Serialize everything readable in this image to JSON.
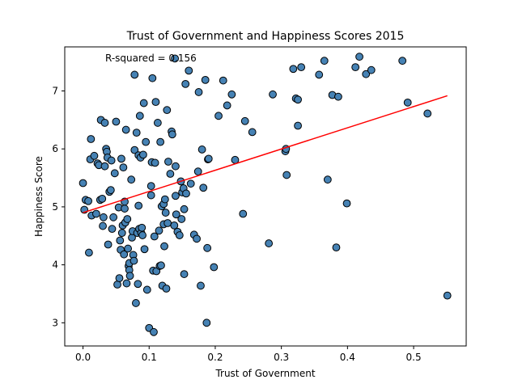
{
  "chart_data": {
    "type": "scatter",
    "title": "Trust of Government and Happiness Scores 2015",
    "xlabel": "Trust of Government",
    "ylabel": "Happiness Score",
    "annotation": "R-squared = 0.156",
    "xlim": [
      -0.0276,
      0.5795
    ],
    "ylim": [
      2.6,
      7.76
    ],
    "xticks": [
      0.0,
      0.1,
      0.2,
      0.3,
      0.4,
      0.5
    ],
    "xtick_labels": [
      "0.0",
      "0.1",
      "0.2",
      "0.3",
      "0.4",
      "0.5"
    ],
    "yticks": [
      3,
      4,
      5,
      6,
      7
    ],
    "ytick_labels": [
      "3",
      "4",
      "5",
      "6",
      "7"
    ],
    "grid": false,
    "point_color": "#4682b4",
    "point_edge_color": "#000000",
    "fit_color": "#ff0000",
    "fit_line": {
      "slope": 3.66,
      "intercept": 4.9,
      "x_range": [
        0.0,
        0.551
      ]
    },
    "points": [
      [
        0.0,
        5.41
      ],
      [
        0.002,
        4.95
      ],
      [
        0.004,
        5.12
      ],
      [
        0.009,
        4.21
      ],
      [
        0.008,
        5.1
      ],
      [
        0.012,
        6.17
      ],
      [
        0.013,
        4.85
      ],
      [
        0.011,
        5.82
      ],
      [
        0.017,
        5.88
      ],
      [
        0.02,
        4.88
      ],
      [
        0.022,
        5.75
      ],
      [
        0.024,
        5.72
      ],
      [
        0.026,
        5.12
      ],
      [
        0.027,
        6.5
      ],
      [
        0.029,
        5.14
      ],
      [
        0.03,
        4.67
      ],
      [
        0.031,
        4.82
      ],
      [
        0.033,
        6.45
      ],
      [
        0.033,
        5.7
      ],
      [
        0.035,
        6.0
      ],
      [
        0.036,
        5.95
      ],
      [
        0.037,
        5.85
      ],
      [
        0.038,
        4.35
      ],
      [
        0.04,
        5.26
      ],
      [
        0.042,
        5.29
      ],
      [
        0.043,
        5.8
      ],
      [
        0.044,
        4.62
      ],
      [
        0.046,
        4.82
      ],
      [
        0.048,
        5.58
      ],
      [
        0.05,
        6.47
      ],
      [
        0.052,
        3.66
      ],
      [
        0.054,
        4.99
      ],
      [
        0.056,
        4.42
      ],
      [
        0.055,
        3.77
      ],
      [
        0.057,
        4.26
      ],
      [
        0.058,
        5.83
      ],
      [
        0.059,
        4.55
      ],
      [
        0.06,
        4.68
      ],
      [
        0.061,
        5.68
      ],
      [
        0.062,
        4.18
      ],
      [
        0.063,
        4.97
      ],
      [
        0.063,
        5.09
      ],
      [
        0.064,
        4.73
      ],
      [
        0.065,
        6.33
      ],
      [
        0.066,
        3.68
      ],
      [
        0.067,
        4.79
      ],
      [
        0.068,
        4.28
      ],
      [
        0.069,
        3.98
      ],
      [
        0.07,
        4.03
      ],
      [
        0.07,
        3.91
      ],
      [
        0.071,
        3.81
      ],
      [
        0.073,
        5.47
      ],
      [
        0.074,
        4.47
      ],
      [
        0.075,
        4.58
      ],
      [
        0.076,
        4.17
      ],
      [
        0.077,
        4.07
      ],
      [
        0.078,
        5.98
      ],
      [
        0.078,
        7.28
      ],
      [
        0.08,
        3.34
      ],
      [
        0.081,
        6.28
      ],
      [
        0.082,
        4.55
      ],
      [
        0.083,
        3.67
      ],
      [
        0.084,
        5.89
      ],
      [
        0.084,
        5.02
      ],
      [
        0.085,
        4.62
      ],
      [
        0.086,
        6.57
      ],
      [
        0.087,
        5.85
      ],
      [
        0.088,
        4.55
      ],
      [
        0.089,
        4.64
      ],
      [
        0.09,
        4.51
      ],
      [
        0.091,
        5.9
      ],
      [
        0.092,
        6.79
      ],
      [
        0.093,
        4.27
      ],
      [
        0.095,
        6.12
      ],
      [
        0.097,
        3.57
      ],
      [
        0.1,
        2.91
      ],
      [
        0.103,
        5.2
      ],
      [
        0.103,
        5.36
      ],
      [
        0.104,
        5.77
      ],
      [
        0.105,
        7.22
      ],
      [
        0.106,
        3.9
      ],
      [
        0.107,
        2.84
      ],
      [
        0.108,
        4.49
      ],
      [
        0.109,
        5.76
      ],
      [
        0.11,
        6.81
      ],
      [
        0.111,
        3.89
      ],
      [
        0.113,
        6.45
      ],
      [
        0.115,
        4.59
      ],
      [
        0.116,
        3.98
      ],
      [
        0.117,
        6.12
      ],
      [
        0.118,
        3.99
      ],
      [
        0.119,
        5.01
      ],
      [
        0.12,
        3.64
      ],
      [
        0.122,
        4.7
      ],
      [
        0.122,
        5.05
      ],
      [
        0.123,
        4.32
      ],
      [
        0.124,
        5.13
      ],
      [
        0.125,
        4.9
      ],
      [
        0.126,
        3.59
      ],
      [
        0.127,
        6.67
      ],
      [
        0.128,
        4.72
      ],
      [
        0.129,
        5.78
      ],
      [
        0.132,
        5.57
      ],
      [
        0.134,
        6.3
      ],
      [
        0.135,
        6.25
      ],
      [
        0.138,
        4.68
      ],
      [
        0.139,
        7.56
      ],
      [
        0.14,
        5.7
      ],
      [
        0.14,
        5.19
      ],
      [
        0.141,
        4.87
      ],
      [
        0.143,
        4.57
      ],
      [
        0.146,
        4.51
      ],
      [
        0.148,
        5.44
      ],
      [
        0.149,
        4.79
      ],
      [
        0.15,
        5.25
      ],
      [
        0.152,
        5.32
      ],
      [
        0.153,
        3.84
      ],
      [
        0.153,
        4.96
      ],
      [
        0.155,
        7.12
      ],
      [
        0.156,
        5.23
      ],
      [
        0.16,
        7.35
      ],
      [
        0.163,
        5.4
      ],
      [
        0.168,
        4.52
      ],
      [
        0.172,
        4.45
      ],
      [
        0.174,
        5.61
      ],
      [
        0.175,
        6.98
      ],
      [
        0.178,
        3.64
      ],
      [
        0.18,
        5.99
      ],
      [
        0.182,
        5.33
      ],
      [
        0.185,
        7.19
      ],
      [
        0.187,
        3.0
      ],
      [
        0.188,
        4.29
      ],
      [
        0.189,
        5.82
      ],
      [
        0.19,
        5.83
      ],
      [
        0.198,
        3.96
      ],
      [
        0.205,
        6.57
      ],
      [
        0.212,
        7.18
      ],
      [
        0.218,
        6.75
      ],
      [
        0.225,
        6.94
      ],
      [
        0.23,
        5.81
      ],
      [
        0.242,
        4.88
      ],
      [
        0.245,
        6.48
      ],
      [
        0.256,
        6.29
      ],
      [
        0.281,
        4.37
      ],
      [
        0.287,
        6.94
      ],
      [
        0.306,
        5.96
      ],
      [
        0.307,
        6.0
      ],
      [
        0.308,
        5.55
      ],
      [
        0.318,
        7.38
      ],
      [
        0.322,
        6.87
      ],
      [
        0.325,
        6.85
      ],
      [
        0.325,
        6.4
      ],
      [
        0.33,
        7.41
      ],
      [
        0.357,
        7.28
      ],
      [
        0.365,
        7.52
      ],
      [
        0.37,
        5.47
      ],
      [
        0.377,
        6.93
      ],
      [
        0.383,
        4.3
      ],
      [
        0.386,
        6.9
      ],
      [
        0.399,
        5.06
      ],
      [
        0.412,
        7.41
      ],
      [
        0.418,
        7.59
      ],
      [
        0.428,
        7.29
      ],
      [
        0.436,
        7.36
      ],
      [
        0.483,
        7.52
      ],
      [
        0.491,
        6.8
      ],
      [
        0.521,
        6.61
      ],
      [
        0.551,
        3.47
      ]
    ]
  }
}
